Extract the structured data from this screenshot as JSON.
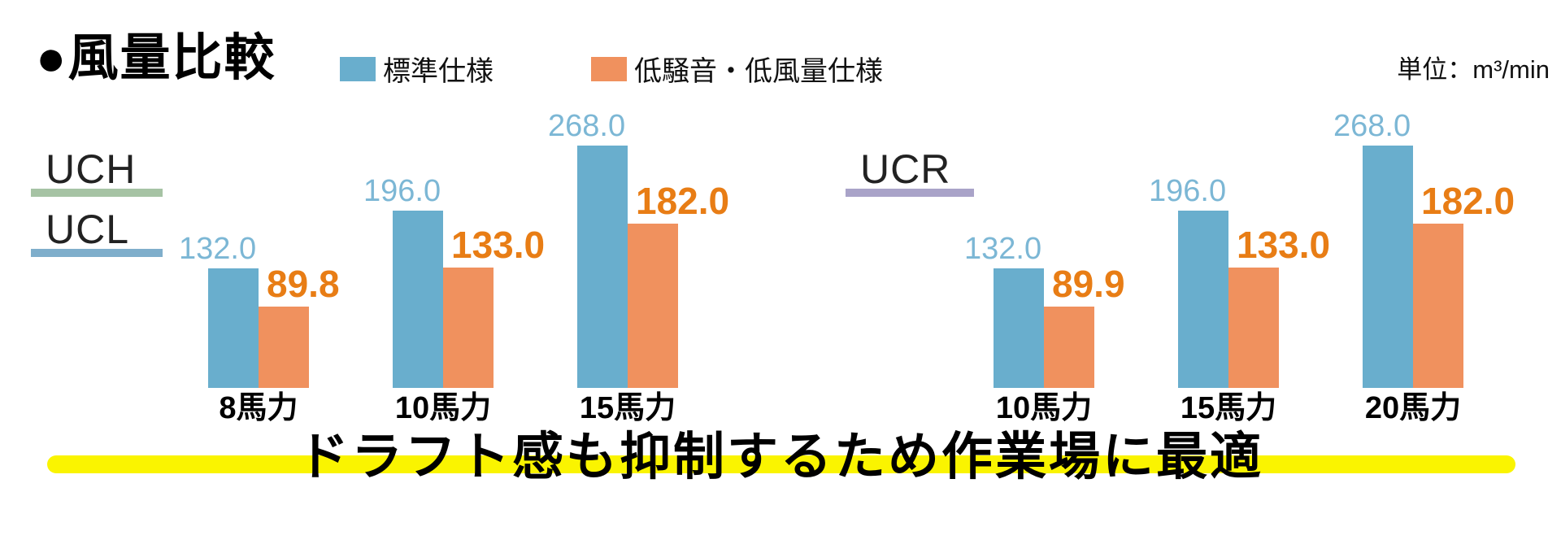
{
  "header": {
    "title": "●風量比較",
    "unit_label": "単位：m³/min"
  },
  "legend": {
    "items": [
      {
        "name": "standard",
        "label": "標準仕様",
        "color": "#69AECD"
      },
      {
        "name": "low-noise",
        "label": "低騒音・低風量仕様",
        "color": "#F0915E"
      }
    ]
  },
  "model_labels": {
    "uch": {
      "label": "UCH",
      "underline_color": "#A6C3A4"
    },
    "ucl": {
      "label": "UCL",
      "underline_color": "#7FAECB"
    },
    "ucr": {
      "label": "UCR",
      "underline_color": "#A9A3C8"
    }
  },
  "chart_data": [
    {
      "type": "bar",
      "models": [
        "UCH",
        "UCL"
      ],
      "categories": [
        "8馬力",
        "10馬力",
        "15馬力"
      ],
      "series": [
        {
          "name": "標準仕様",
          "color": "#69AECD",
          "value_label_color": "#7CB7D5",
          "values": [
            132.0,
            196.0,
            268.0
          ]
        },
        {
          "name": "低騒音・低風量仕様",
          "color": "#F0915E",
          "value_label_color": "#E87D15",
          "values": [
            89.8,
            133.0,
            182.0
          ]
        }
      ],
      "unit": "m³/min",
      "ylim": [
        0,
        268
      ],
      "grid": false,
      "value_labels": "shown, one decimal"
    },
    {
      "type": "bar",
      "models": [
        "UCR"
      ],
      "categories": [
        "10馬力",
        "15馬力",
        "20馬力"
      ],
      "series": [
        {
          "name": "標準仕様",
          "color": "#69AECD",
          "value_label_color": "#7CB7D5",
          "values": [
            132.0,
            196.0,
            268.0
          ]
        },
        {
          "name": "低騒音・低風量仕様",
          "color": "#F0915E",
          "value_label_color": "#E87D15",
          "values": [
            89.9,
            133.0,
            182.0
          ]
        }
      ],
      "unit": "m³/min",
      "ylim": [
        0,
        268
      ],
      "grid": false,
      "value_labels": "shown, one decimal"
    }
  ],
  "footer": {
    "text": "ドラフト感も抑制するため作業場に最適",
    "highlight_color": "#FAF400"
  }
}
